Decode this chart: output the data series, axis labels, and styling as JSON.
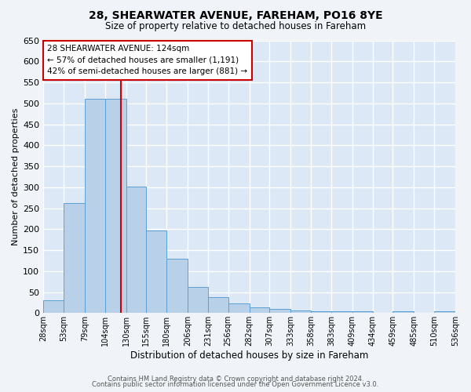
{
  "title": "28, SHEARWATER AVENUE, FAREHAM, PO16 8YE",
  "subtitle": "Size of property relative to detached houses in Fareham",
  "xlabel": "Distribution of detached houses by size in Fareham",
  "ylabel": "Number of detached properties",
  "bar_color": "#b8d0e8",
  "bar_edge_color": "#5a9fd4",
  "background_color": "#dce8f5",
  "fig_background_color": "#f0f4f8",
  "grid_color": "#ffffff",
  "bin_edges": [
    28,
    53,
    79,
    104,
    130,
    155,
    180,
    206,
    231,
    256,
    282,
    307,
    333,
    358,
    383,
    409,
    434,
    459,
    485,
    510,
    536
  ],
  "bar_heights": [
    30,
    263,
    511,
    511,
    301,
    196,
    130,
    63,
    38,
    23,
    13,
    9,
    6,
    5,
    5,
    5,
    1,
    5,
    1,
    5
  ],
  "property_size": 124,
  "red_line_color": "#cc0000",
  "ylim": [
    0,
    650
  ],
  "yticks": [
    0,
    50,
    100,
    150,
    200,
    250,
    300,
    350,
    400,
    450,
    500,
    550,
    600,
    650
  ],
  "annotation_lines": [
    "28 SHEARWATER AVENUE: 124sqm",
    "← 57% of detached houses are smaller (1,191)",
    "42% of semi-detached houses are larger (881) →"
  ],
  "annotation_box_color": "#ffffff",
  "annotation_box_edge_color": "#cc0000",
  "footer_line1": "Contains HM Land Registry data © Crown copyright and database right 2024.",
  "footer_line2": "Contains public sector information licensed under the Open Government Licence v3.0."
}
